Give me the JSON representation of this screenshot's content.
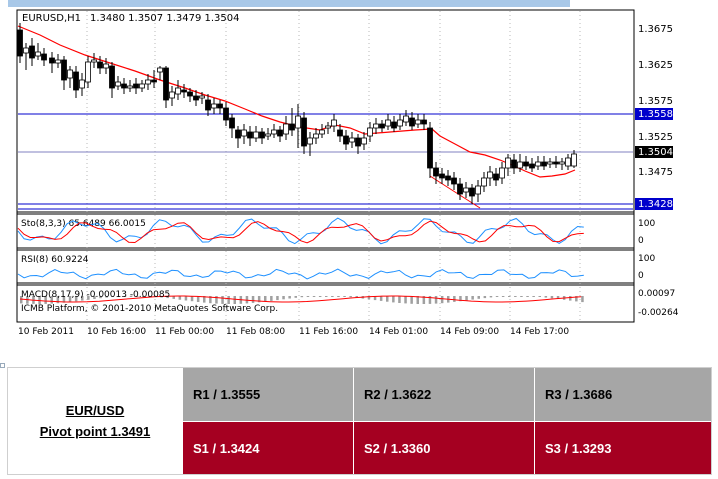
{
  "chart_header": {
    "title": "EURUSD,H1",
    "ohlc": "1.3480 1.3507 1.3479 1.3504"
  },
  "price_labels": [
    "1.3675",
    "1.3625",
    "1.3575",
    "1.3525",
    "1.3475"
  ],
  "price_markers": {
    "r_line": "1.3558",
    "current": "1.3504",
    "s_line": "1.3428"
  },
  "stochastic": {
    "label": "Sto(8,3,3) 65.6489 66.0015",
    "scale": [
      "100",
      "0"
    ]
  },
  "rsi": {
    "label": "RSI(8) 60.9224",
    "scale": [
      "100",
      "0"
    ]
  },
  "macd": {
    "label": "MACD(8,17,9) -0.00013 -0.00085",
    "scale": [
      "0.00097",
      "-0.00264"
    ]
  },
  "watermark": "ICMB Platform, © 2001-2010 MetaQuotes Software Corp.",
  "time_labels": [
    "10 Feb 2011",
    "10 Feb 16:00",
    "11 Feb 00:00",
    "11 Feb 08:00",
    "11 Feb 16:00",
    "14 Feb 01:00",
    "14 Feb 09:00",
    "14 Feb 17:00"
  ],
  "colors": {
    "candle_up": "#ffffff",
    "candle_down": "#000000",
    "moving_average": "#ff0000",
    "level_lines": "#0000cc",
    "oscillator_main": "#1e90ff",
    "oscillator_signal": "#ff0000",
    "current_price_bg": "#000000",
    "level_label_bg": "#0000cc",
    "resistance_row": "#a6a6a6",
    "support_row": "#a50021"
  },
  "pivot_table": {
    "pair": "EUR/USD",
    "pivot": "Pivot point 1.3491",
    "resistance": [
      "R1 / 1.3555",
      "R2 / 1.3622",
      "R3 / 1.3686"
    ],
    "support": [
      "S1 / 1.3424",
      "S2 / 1.3360",
      "S3 / 1.3293"
    ]
  }
}
